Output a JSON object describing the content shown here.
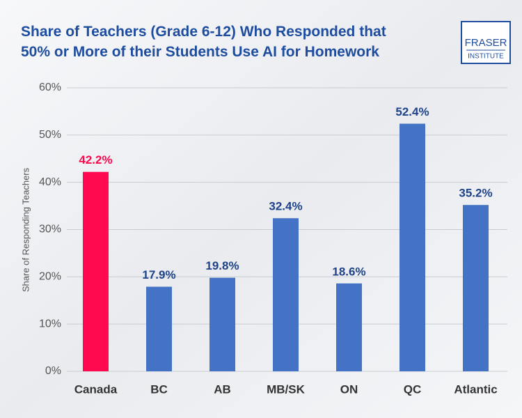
{
  "logo": [
    "FRASER",
    "INSTITUTE"
  ],
  "chart_data": {
    "type": "bar",
    "title": [
      "Share of Teachers (Grade 6-12) Who Responded that",
      "50% or More of their Students Use AI for Homework"
    ],
    "y_label": "Share of Responding Teachers",
    "categories": [
      "Canada",
      "BC",
      "AB",
      "MB/SK",
      "ON",
      "QC",
      "Atlantic"
    ],
    "values": [
      42.2,
      17.9,
      19.8,
      32.4,
      18.6,
      52.4,
      35.2
    ],
    "value_labels": [
      "42.2%",
      "17.9%",
      "19.8%",
      "32.4%",
      "18.6%",
      "52.4%",
      "35.2%"
    ],
    "colors": [
      "#ff0a4e",
      "#4472c4",
      "#4472c4",
      "#4472c4",
      "#4472c4",
      "#4472c4",
      "#4472c4"
    ],
    "value_label_colors": [
      "#ff0a4e",
      "#1e4389",
      "#1e4389",
      "#1e4389",
      "#1e4389",
      "#1e4389",
      "#1e4389"
    ],
    "ylim": [
      0,
      60
    ],
    "yticks": [
      {
        "value": 0,
        "label": "0%"
      },
      {
        "value": 10,
        "label": "10%"
      },
      {
        "value": 20,
        "label": "20%"
      },
      {
        "value": 30,
        "label": "30%"
      },
      {
        "value": 40,
        "label": "40%"
      },
      {
        "value": 50,
        "label": "50%"
      },
      {
        "value": 60,
        "label": "60%"
      }
    ],
    "grid": true
  }
}
